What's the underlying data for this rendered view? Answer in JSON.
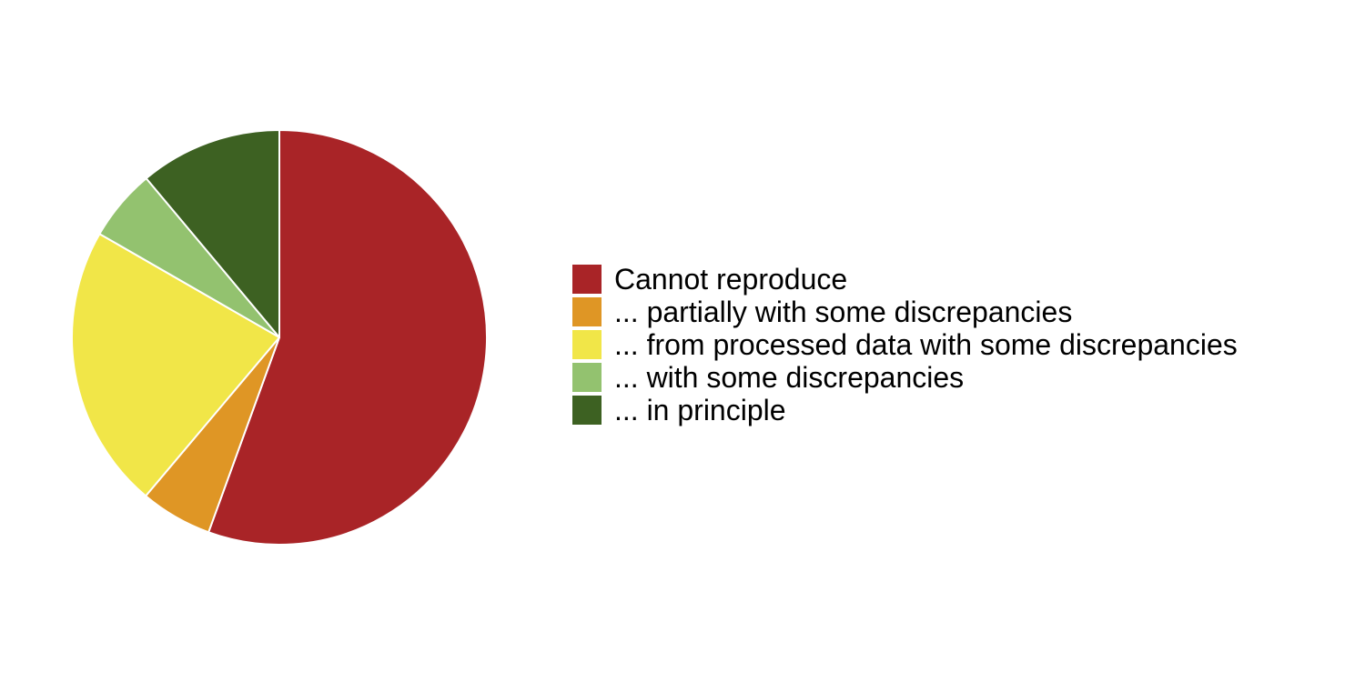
{
  "chart_data": {
    "type": "pie",
    "start": "12 o'clock",
    "direction": "clockwise",
    "legend_position": "right",
    "slices": [
      {
        "label": "Cannot reproduce",
        "value": 55.6,
        "color": "#a92427"
      },
      {
        "label": "... partially with some discrepancies",
        "value": 5.6,
        "color": "#df9625"
      },
      {
        "label": "... from processed data with some discrepancies",
        "value": 22.2,
        "color": "#f1e648"
      },
      {
        "label": "... with some discrepancies",
        "value": 5.6,
        "color": "#93c26f"
      },
      {
        "label": "... in principle",
        "value": 11.1,
        "color": "#3d6122"
      }
    ]
  }
}
